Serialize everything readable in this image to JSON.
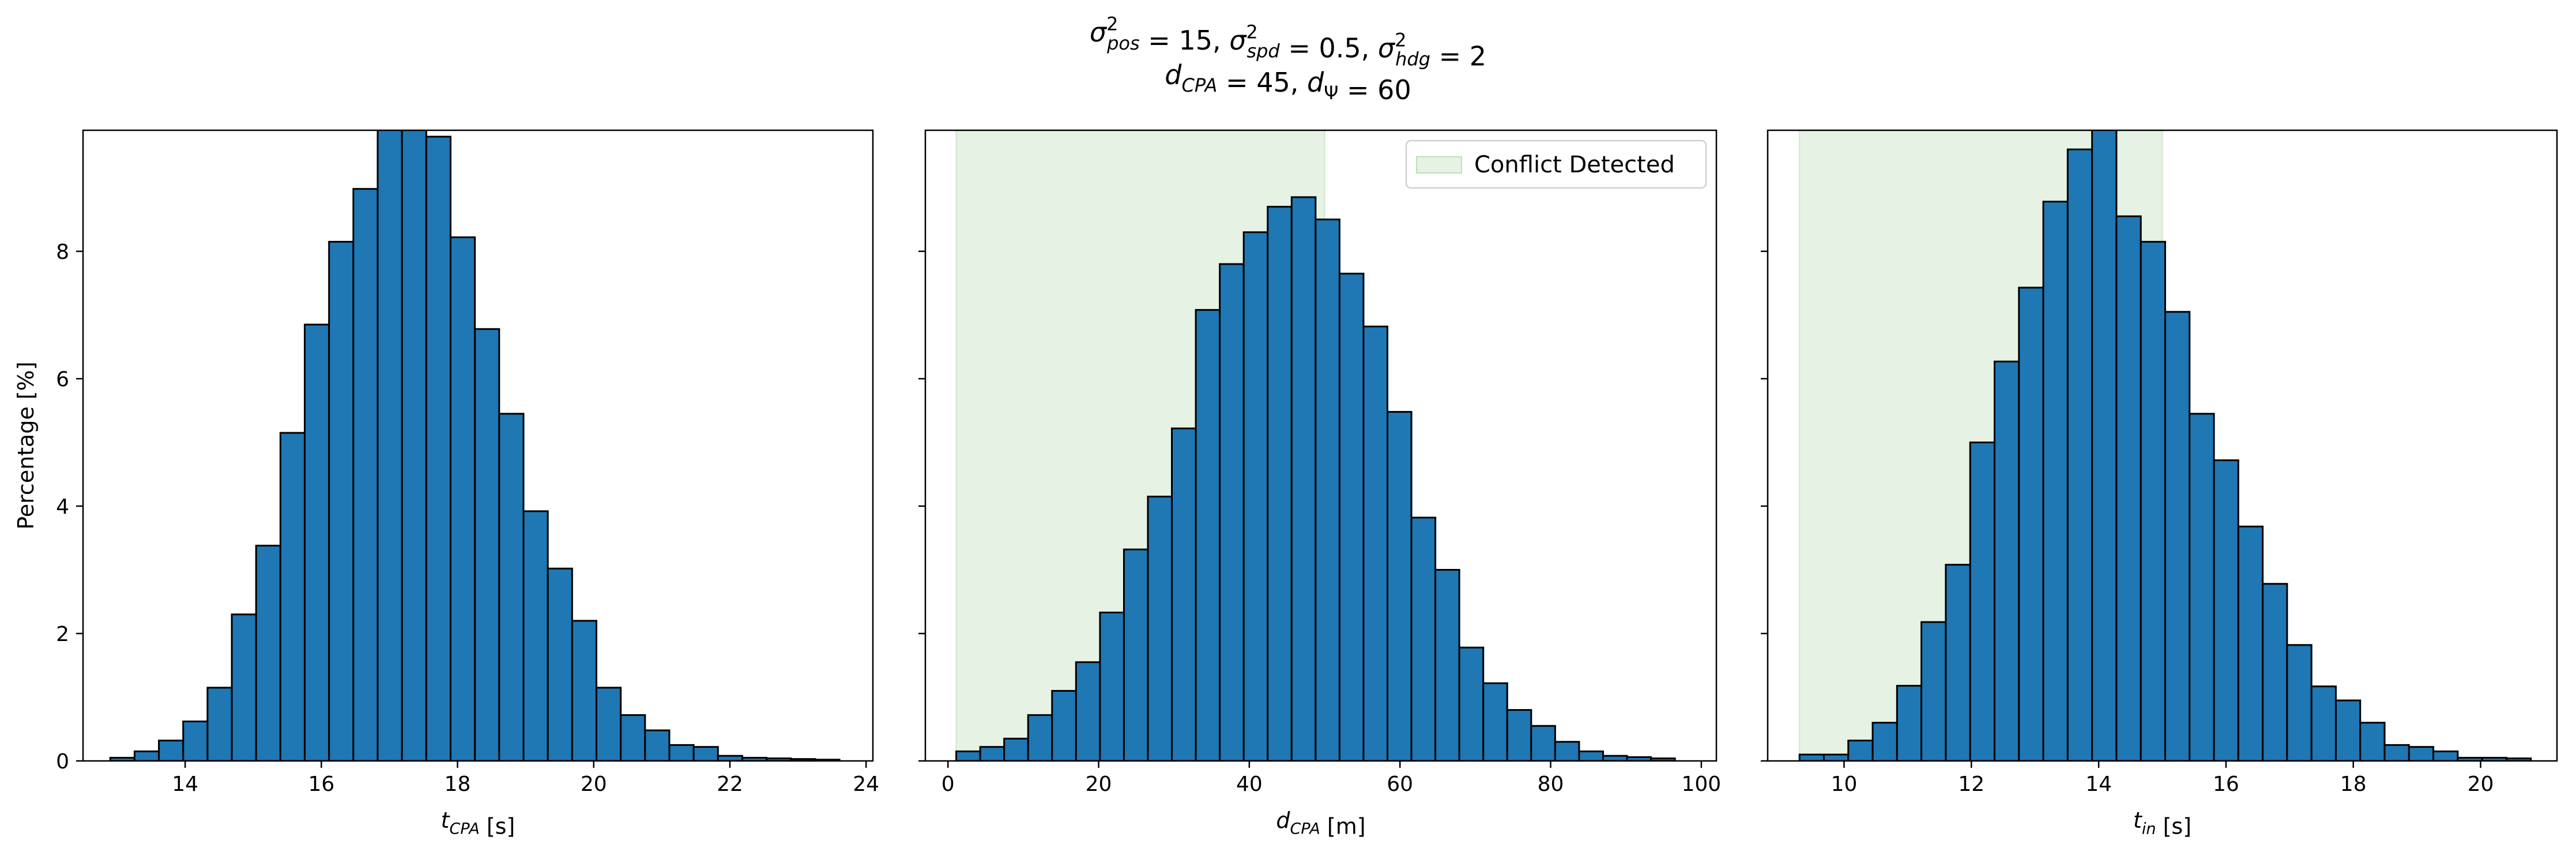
{
  "figure": {
    "title_line1": "σ²pos = 15, σ²spd = 0.5, σ²hdg = 2",
    "title_line2": "dCPA = 45, dΨ = 60"
  },
  "chart_data": [
    {
      "type": "bar",
      "xlabel": "tCPA [s]",
      "ylabel": "Percentage [%]",
      "xlim": [
        12.5,
        24.1
      ],
      "ylim": [
        0,
        9.9
      ],
      "xticks": [
        14,
        16,
        18,
        20,
        22,
        24
      ],
      "yticks": [
        0,
        2,
        4,
        6,
        8
      ],
      "bin_start": 12.9,
      "bin_width": 0.357,
      "values": [
        0.05,
        0.15,
        0.32,
        0.62,
        1.15,
        2.3,
        3.38,
        5.15,
        6.85,
        8.15,
        8.98,
        9.95,
        9.95,
        9.8,
        8.22,
        6.78,
        5.45,
        3.92,
        3.02,
        2.2,
        1.15,
        0.72,
        0.48,
        0.25,
        0.22,
        0.08,
        0.05,
        0.04,
        0.03,
        0.02
      ],
      "bar_color": "#1f77b4",
      "edge_color": "#000000"
    },
    {
      "type": "bar",
      "xlabel": "dCPA [m]",
      "ylabel": "",
      "xlim": [
        -3,
        102
      ],
      "ylim": [
        0,
        9.9
      ],
      "xticks": [
        0,
        20,
        40,
        60,
        80,
        100
      ],
      "yticks": [
        0,
        2,
        4,
        6,
        8
      ],
      "bin_start": 1.1,
      "bin_width": 3.18,
      "values": [
        0.15,
        0.22,
        0.35,
        0.72,
        1.1,
        1.55,
        2.33,
        3.32,
        4.15,
        5.22,
        7.08,
        7.8,
        8.3,
        8.7,
        8.85,
        8.5,
        7.65,
        6.82,
        5.48,
        3.82,
        3.0,
        1.78,
        1.22,
        0.8,
        0.55,
        0.3,
        0.15,
        0.08,
        0.06,
        0.04
      ],
      "shaded_region": [
        1.1,
        50
      ],
      "legend": "Conflict Detected",
      "legend_position": "top-right",
      "bar_color": "#1f77b4",
      "edge_color": "#000000",
      "shade_color": "#e6f2e4"
    },
    {
      "type": "bar",
      "xlabel": "tin [s]",
      "ylabel": "",
      "xlim": [
        8.8,
        21.2
      ],
      "ylim": [
        0,
        9.9
      ],
      "xticks": [
        10,
        12,
        14,
        16,
        18,
        20
      ],
      "yticks": [
        0,
        2,
        4,
        6,
        8
      ],
      "bin_start": 9.3,
      "bin_width": 0.383,
      "values": [
        0.1,
        0.1,
        0.32,
        0.6,
        1.18,
        2.18,
        3.08,
        5.0,
        6.27,
        7.43,
        8.78,
        9.6,
        9.95,
        8.55,
        8.15,
        7.05,
        5.45,
        4.72,
        3.68,
        2.78,
        1.82,
        1.17,
        0.95,
        0.6,
        0.25,
        0.22,
        0.15,
        0.05,
        0.05,
        0.04
      ],
      "shaded_region": [
        9.3,
        15
      ],
      "bar_color": "#1f77b4",
      "edge_color": "#000000",
      "shade_color": "#e6f2e4"
    }
  ]
}
